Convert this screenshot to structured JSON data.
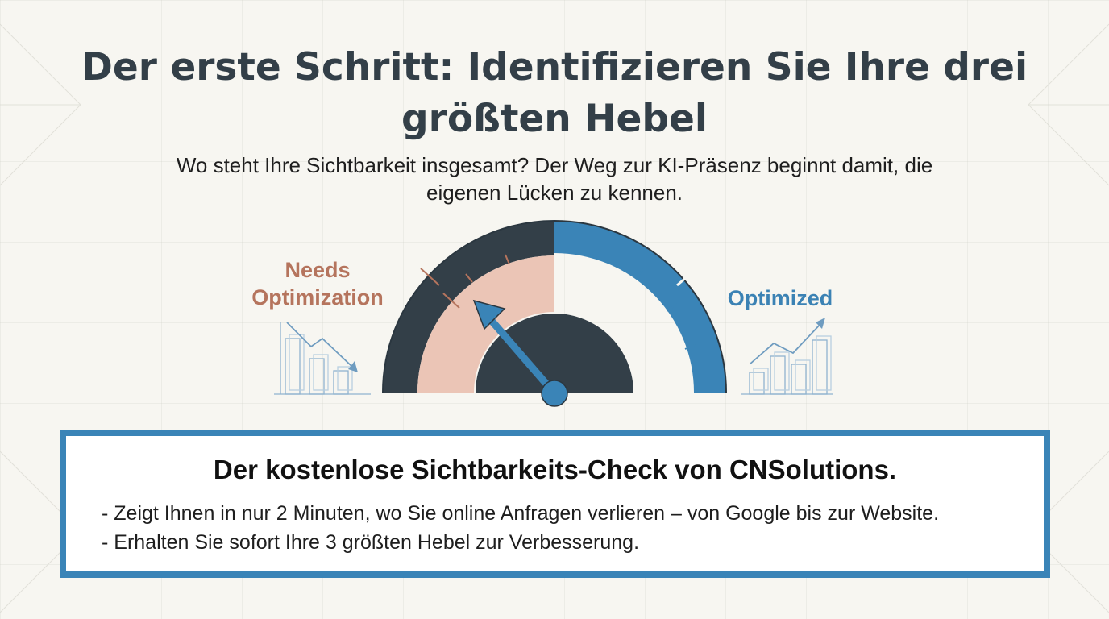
{
  "slide": {
    "title": "Der erste Schritt: Identifizieren Sie Ihre drei größten Hebel",
    "subtitle": "Wo steht Ihre Sichtbarkeit insgesamt? Der Weg zur KI-Präsenz beginnt damit, die eigenen Lücken zu kennen."
  },
  "gauge": {
    "label_low": "Needs Optimization",
    "label_high": "Optimized",
    "needle_level": 0.27,
    "colors": {
      "low_outer": "#333f48",
      "low_inner": "#ebc5b6",
      "high": "#3a84b7",
      "label_low": "#b5745d",
      "label_high": "#3b82b4",
      "hub": "#333f48",
      "needle": "#3a84b7"
    },
    "icons": {
      "left": "trending-down-chart-icon",
      "right": "trending-up-chart-icon"
    }
  },
  "info_box": {
    "heading": "Der kostenlose Sichtbarkeits-Check von CNSolutions.",
    "bullets": [
      "- Zeigt Ihnen in nur 2 Minuten, wo Sie online Anfragen verlieren – von Google bis zur Website.",
      "- Erhalten Sie sofort Ihre 3 größten Hebel zur Verbesserung."
    ],
    "border_color": "#3a84b7"
  }
}
